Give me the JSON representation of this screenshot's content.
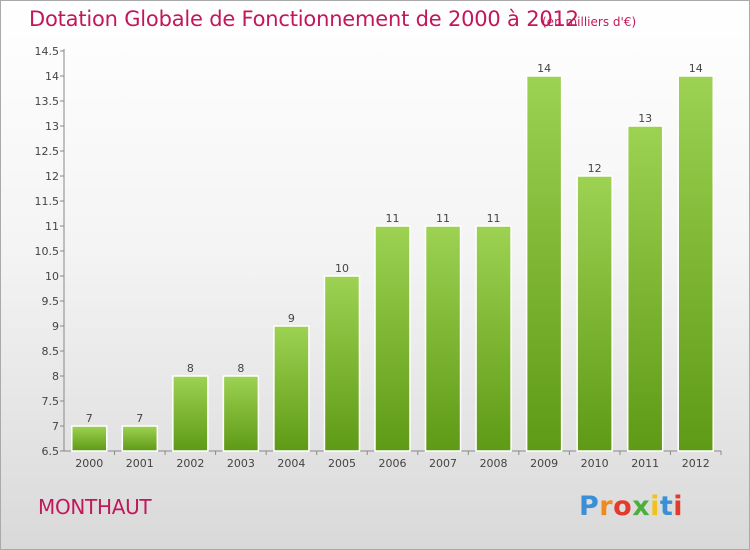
{
  "header": {
    "title": "Dotation Globale de Fonctionnement de 2000 à 2012",
    "subtitle": "(en milliers d'€)"
  },
  "footer": {
    "commune": "MONTHAUT",
    "logo_letters": [
      "P",
      "r",
      "o",
      "x",
      "i",
      "t",
      "i"
    ]
  },
  "colors": {
    "title": "#c2185b",
    "bar_top": "#9dd252",
    "bar_bottom": "#5e9a15",
    "axis": "#888888"
  },
  "chart_data": {
    "type": "bar",
    "title": "Dotation Globale de Fonctionnement de 2000 à 2012",
    "categories": [
      "2000",
      "2001",
      "2002",
      "2003",
      "2004",
      "2005",
      "2006",
      "2007",
      "2008",
      "2009",
      "2010",
      "2011",
      "2012"
    ],
    "values": [
      7,
      7,
      8,
      8,
      9,
      10,
      11,
      11,
      11,
      14,
      12,
      13,
      14
    ],
    "ylim": [
      6.5,
      14.5
    ],
    "yticks": [
      6.5,
      7,
      7.5,
      8,
      8.5,
      9,
      9.5,
      10,
      10.5,
      11,
      11.5,
      12,
      12.5,
      13,
      13.5,
      14,
      14.5
    ],
    "xlabel": "",
    "ylabel": "",
    "grid": false,
    "legend": "none"
  }
}
